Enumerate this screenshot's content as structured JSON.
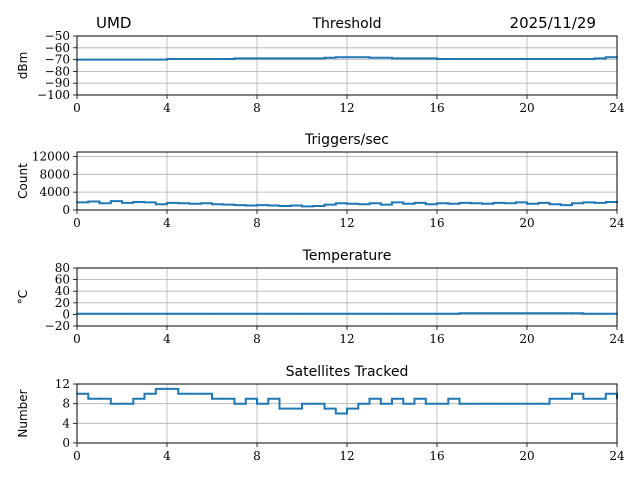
{
  "header": {
    "site": "UMD",
    "date": "2025/11/29"
  },
  "colors": {
    "series": "#1f77b4",
    "grid": "#b0b0b0",
    "axis": "#000000"
  },
  "chart_data": [
    {
      "type": "line",
      "title": "Threshold",
      "xlabel": "",
      "ylabel": "dBm",
      "xlim": [
        0,
        24
      ],
      "ylim": [
        -100,
        -50
      ],
      "xticks": [
        "0",
        "4",
        "8",
        "12",
        "16",
        "20",
        "24"
      ],
      "yticks": [
        "−50",
        "−60",
        "−70",
        "−80",
        "−90",
        "−100"
      ],
      "ytick_values": [
        -50,
        -60,
        -70,
        -80,
        -90,
        -100
      ],
      "grid": true,
      "series": [
        {
          "x": [
            0,
            1,
            2,
            3,
            4,
            5,
            6,
            7,
            8,
            9,
            10,
            11,
            11.5,
            12,
            13,
            14,
            15,
            16,
            17,
            18,
            19,
            20,
            21,
            22,
            23,
            23.5,
            24
          ],
          "values": [
            -70,
            -70,
            -70,
            -70,
            -69.5,
            -69.5,
            -69.5,
            -69,
            -69,
            -69,
            -69,
            -68.5,
            -68,
            -68,
            -68.5,
            -69,
            -69,
            -69.5,
            -69.5,
            -69.5,
            -69.5,
            -69.5,
            -69.5,
            -69.5,
            -69,
            -68,
            -68
          ]
        }
      ]
    },
    {
      "type": "line",
      "title": "Triggers/sec",
      "xlabel": "",
      "ylabel": "Count",
      "xlim": [
        0,
        24
      ],
      "ylim": [
        0,
        13000
      ],
      "xticks": [
        "0",
        "4",
        "8",
        "12",
        "16",
        "20",
        "24"
      ],
      "yticks": [
        "0",
        "4000",
        "8000",
        "12000"
      ],
      "ytick_values": [
        0,
        4000,
        8000,
        12000
      ],
      "grid": true,
      "series": [
        {
          "x": [
            0,
            0.5,
            1,
            1.5,
            2,
            2.5,
            3,
            3.5,
            4,
            4.5,
            5,
            5.5,
            6,
            6.5,
            7,
            7.5,
            8,
            8.5,
            9,
            9.5,
            10,
            10.5,
            11,
            11.5,
            12,
            12.5,
            13,
            13.5,
            14,
            14.5,
            15,
            15.5,
            16,
            16.5,
            17,
            17.5,
            18,
            18.5,
            19,
            19.5,
            20,
            20.5,
            21,
            21.5,
            22,
            22.5,
            23,
            23.5,
            24
          ],
          "values": [
            1700,
            1900,
            1500,
            2000,
            1600,
            1800,
            1700,
            1300,
            1600,
            1500,
            1400,
            1500,
            1300,
            1200,
            1100,
            1000,
            1100,
            1000,
            900,
            1000,
            800,
            900,
            1200,
            1500,
            1400,
            1300,
            1500,
            1200,
            1700,
            1400,
            1600,
            1300,
            1500,
            1400,
            1600,
            1500,
            1400,
            1600,
            1500,
            1700,
            1400,
            1600,
            1300,
            1100,
            1500,
            1700,
            1600,
            1800,
            1700
          ]
        }
      ]
    },
    {
      "type": "line",
      "title": "Temperature",
      "xlabel": "",
      "ylabel": "°C",
      "xlim": [
        0,
        24
      ],
      "ylim": [
        -20,
        80
      ],
      "xticks": [
        "0",
        "4",
        "8",
        "12",
        "16",
        "20",
        "24"
      ],
      "yticks": [
        "−20",
        "0",
        "20",
        "40",
        "60",
        "80"
      ],
      "ytick_values": [
        -20,
        0,
        20,
        40,
        60,
        80
      ],
      "grid": true,
      "series": [
        {
          "x": [
            0,
            2,
            4,
            6,
            8,
            10,
            12,
            14,
            16,
            17,
            18,
            20,
            22,
            22.5,
            24
          ],
          "values": [
            1,
            1,
            1,
            1,
            1,
            1,
            1,
            1,
            1,
            2,
            2,
            2,
            2,
            1,
            1
          ]
        }
      ]
    },
    {
      "type": "line",
      "title": "Satellites Tracked",
      "xlabel": "",
      "ylabel": "Number",
      "xlim": [
        0,
        24
      ],
      "ylim": [
        0,
        12
      ],
      "xticks": [
        "0",
        "4",
        "8",
        "12",
        "16",
        "20",
        "24"
      ],
      "yticks": [
        "0",
        "4",
        "8",
        "12"
      ],
      "ytick_values": [
        0,
        4,
        8,
        12
      ],
      "grid": true,
      "series": [
        {
          "x": [
            0,
            0.5,
            1,
            1.5,
            2,
            2.5,
            3,
            3.5,
            4,
            4.5,
            5,
            5.5,
            6,
            6.5,
            7,
            7.5,
            8,
            8.5,
            9,
            9.5,
            10,
            10.5,
            11,
            11.5,
            12,
            12.5,
            13,
            13.5,
            14,
            14.5,
            15,
            15.5,
            16,
            16.5,
            17,
            17.5,
            18,
            18.5,
            19,
            19.5,
            20,
            20.5,
            21,
            21.5,
            22,
            22.5,
            23,
            23.5,
            24
          ],
          "values": [
            10,
            9,
            9,
            8,
            8,
            9,
            10,
            11,
            11,
            10,
            10,
            10,
            9,
            9,
            8,
            9,
            8,
            9,
            7,
            7,
            8,
            8,
            7,
            6,
            7,
            8,
            9,
            8,
            9,
            8,
            9,
            8,
            8,
            9,
            8,
            8,
            8,
            8,
            8,
            8,
            8,
            8,
            9,
            9,
            10,
            9,
            9,
            10,
            9
          ]
        }
      ]
    }
  ]
}
